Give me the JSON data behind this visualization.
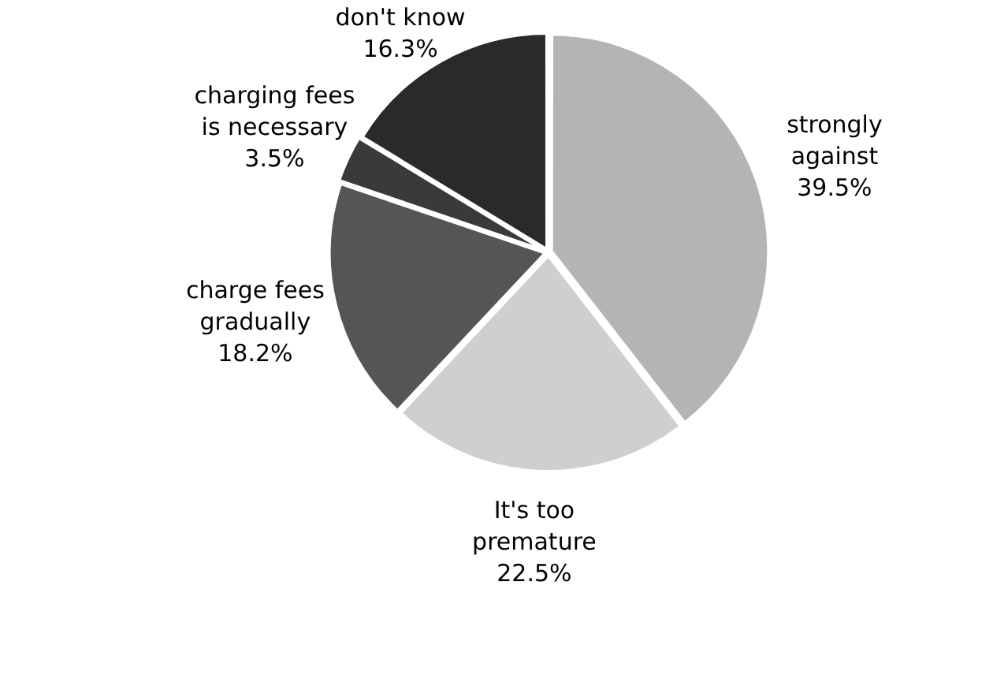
{
  "chart_data": {
    "type": "pie",
    "categories": [
      "strongly against",
      "It's too premature",
      "charge fees gradually",
      "charging fees is necessary",
      "don't know"
    ],
    "values": [
      39.5,
      22.5,
      18.2,
      3.5,
      16.3
    ],
    "value_labels": [
      "39.5%",
      "22.5%",
      "18.2%",
      "3.5%",
      "16.3%"
    ],
    "colors": [
      "#b4b4b4",
      "#cfcfcf",
      "#555555",
      "#3a3a3a",
      "#2a2a2a"
    ],
    "legend": false
  }
}
